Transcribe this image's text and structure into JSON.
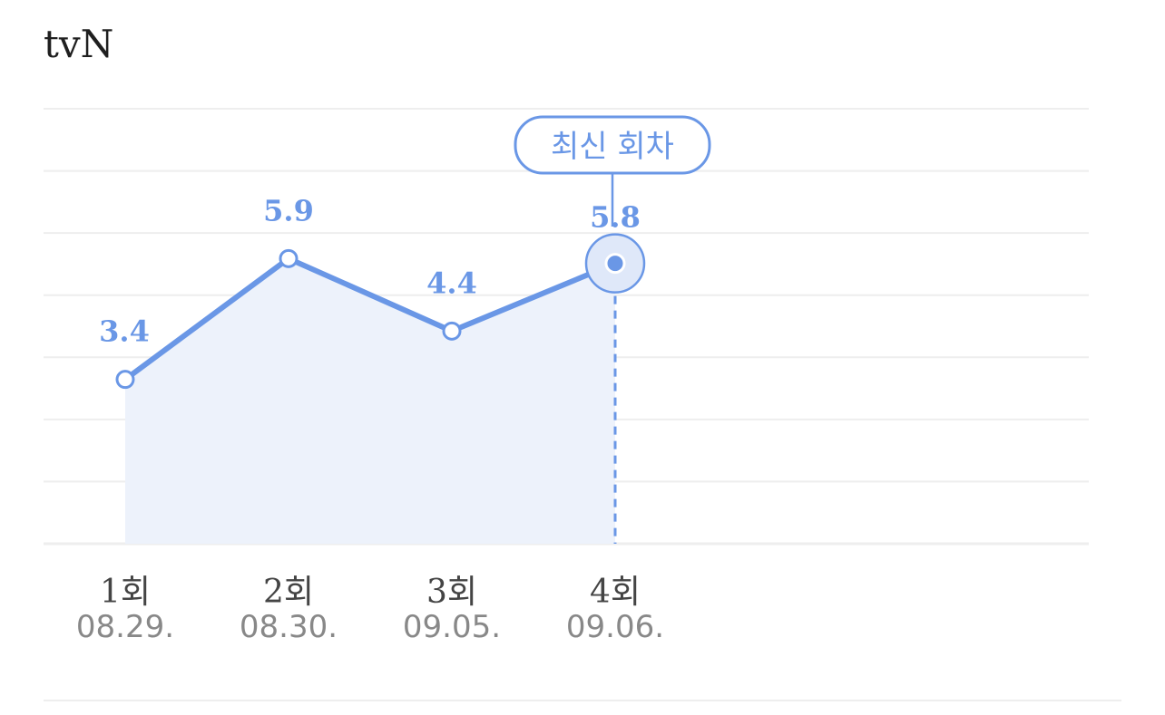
{
  "channel": "tvN",
  "colors": {
    "accent": "#6a97e6",
    "fill": "#edf2fb",
    "grid": "#eeeeee",
    "text": "#1f1f1f"
  },
  "chart_data": {
    "type": "line",
    "categories": [
      "1회",
      "2회",
      "3회",
      "4회"
    ],
    "dates": [
      "08.29.",
      "08.30.",
      "09.05.",
      "09.06."
    ],
    "values": [
      3.4,
      5.9,
      4.4,
      5.8
    ],
    "value_labels": [
      "3.4",
      "5.9",
      "4.4",
      "5.8"
    ],
    "annotation": {
      "text": "최신 회차",
      "index": 3
    },
    "ylim": [
      0,
      9
    ],
    "grid": true,
    "highlight_index": 3
  }
}
